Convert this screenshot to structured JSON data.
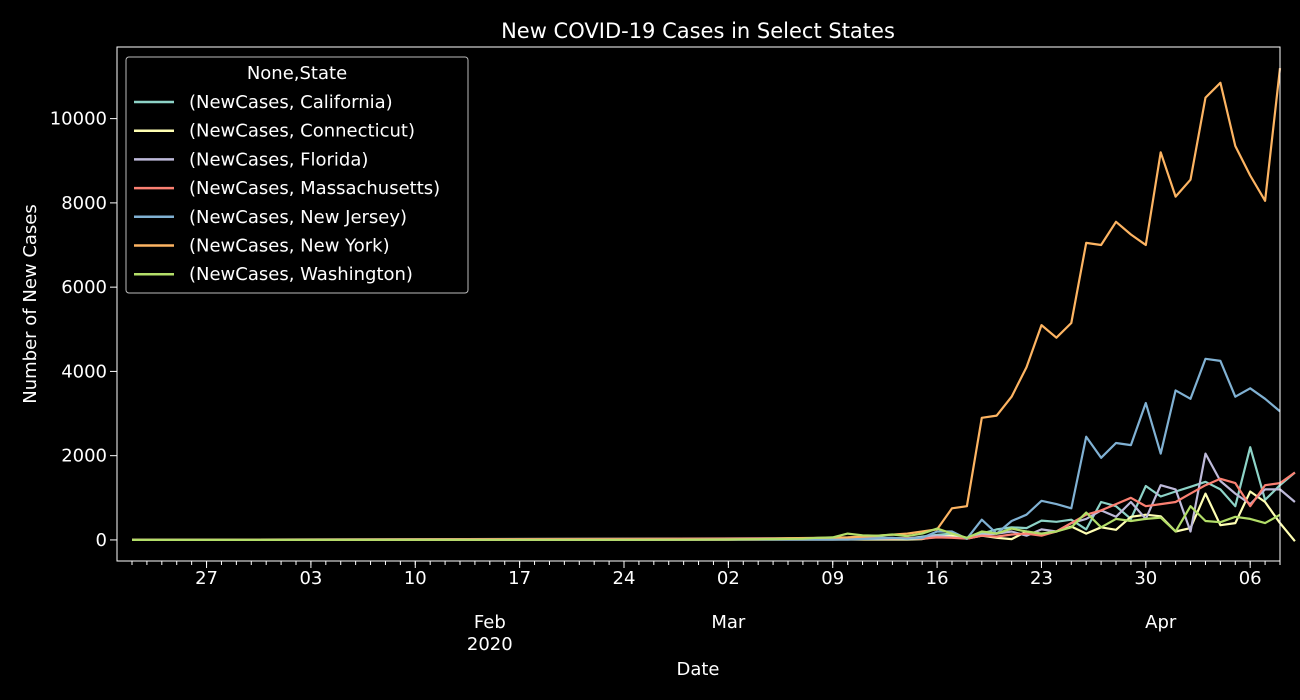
{
  "chart_data": {
    "type": "line",
    "title": "New COVID-19 Cases in Select States",
    "xlabel": "Date",
    "ylabel": "Number of New Cases",
    "x_start": "2020-01-22",
    "x_end": "2020-04-08",
    "ylim": [
      -500,
      11700
    ],
    "yticks": [
      0,
      2000,
      4000,
      6000,
      8000,
      10000
    ],
    "ytick_labels": [
      "0",
      "2000",
      "4000",
      "6000",
      "8000",
      "10000"
    ],
    "xticks": [
      {
        "date": "2020-01-27",
        "label": "27"
      },
      {
        "date": "2020-02-03",
        "label": "03"
      },
      {
        "date": "2020-02-10",
        "label": "10"
      },
      {
        "date": "2020-02-17",
        "label": "17"
      },
      {
        "date": "2020-02-24",
        "label": "24"
      },
      {
        "date": "2020-03-02",
        "label": "02"
      },
      {
        "date": "2020-03-09",
        "label": "09"
      },
      {
        "date": "2020-03-16",
        "label": "16"
      },
      {
        "date": "2020-03-23",
        "label": "23"
      },
      {
        "date": "2020-03-30",
        "label": "30"
      },
      {
        "date": "2020-04-06",
        "label": "06"
      }
    ],
    "month_labels": [
      {
        "date": "2020-02-15",
        "label": "Feb",
        "year": "2020"
      },
      {
        "date": "2020-03-02",
        "label": "Mar",
        "year": ""
      },
      {
        "date": "2020-03-31",
        "label": "Apr",
        "year": ""
      }
    ],
    "grid": false,
    "legend": {
      "title": "None,State",
      "position": "top-left"
    },
    "series": [
      {
        "name": "(NewCases, California)",
        "color": "#8dd3c7",
        "points": [
          [
            "2020-01-22",
            0
          ],
          [
            "2020-03-10",
            40
          ],
          [
            "2020-03-12",
            60
          ],
          [
            "2020-03-14",
            30
          ],
          [
            "2020-03-15",
            80
          ],
          [
            "2020-03-16",
            120
          ],
          [
            "2020-03-17",
            150
          ],
          [
            "2020-03-18",
            40
          ],
          [
            "2020-03-19",
            150
          ],
          [
            "2020-03-20",
            250
          ],
          [
            "2020-03-21",
            300
          ],
          [
            "2020-03-22",
            280
          ],
          [
            "2020-03-23",
            460
          ],
          [
            "2020-03-24",
            430
          ],
          [
            "2020-03-25",
            480
          ],
          [
            "2020-03-26",
            250
          ],
          [
            "2020-03-27",
            900
          ],
          [
            "2020-03-28",
            800
          ],
          [
            "2020-03-29",
            500
          ],
          [
            "2020-03-30",
            1280
          ],
          [
            "2020-03-31",
            1030
          ],
          [
            "2020-04-01",
            1150
          ],
          [
            "2020-04-02",
            1260
          ],
          [
            "2020-04-03",
            1380
          ],
          [
            "2020-04-04",
            1200
          ],
          [
            "2020-04-05",
            800
          ],
          [
            "2020-04-06",
            2200
          ],
          [
            "2020-04-07",
            950
          ],
          [
            "2020-04-08",
            1300
          ],
          [
            "2020-04-09",
            1600
          ]
        ]
      },
      {
        "name": "(NewCases, Connecticut)",
        "color": "#ffffb3",
        "points": [
          [
            "2020-01-22",
            0
          ],
          [
            "2020-03-14",
            10
          ],
          [
            "2020-03-15",
            20
          ],
          [
            "2020-03-16",
            80
          ],
          [
            "2020-03-17",
            100
          ],
          [
            "2020-03-18",
            30
          ],
          [
            "2020-03-19",
            100
          ],
          [
            "2020-03-20",
            50
          ],
          [
            "2020-03-21",
            20
          ],
          [
            "2020-03-22",
            200
          ],
          [
            "2020-03-23",
            120
          ],
          [
            "2020-03-24",
            200
          ],
          [
            "2020-03-25",
            320
          ],
          [
            "2020-03-26",
            150
          ],
          [
            "2020-03-27",
            300
          ],
          [
            "2020-03-28",
            240
          ],
          [
            "2020-03-29",
            550
          ],
          [
            "2020-03-30",
            600
          ],
          [
            "2020-03-31",
            560
          ],
          [
            "2020-04-01",
            200
          ],
          [
            "2020-04-02",
            280
          ],
          [
            "2020-04-03",
            1100
          ],
          [
            "2020-04-04",
            350
          ],
          [
            "2020-04-05",
            400
          ],
          [
            "2020-04-06",
            1150
          ],
          [
            "2020-04-07",
            900
          ],
          [
            "2020-04-08",
            400
          ],
          [
            "2020-04-09",
            -30
          ]
        ]
      },
      {
        "name": "(NewCases, Florida)",
        "color": "#bebada",
        "points": [
          [
            "2020-01-22",
            0
          ],
          [
            "2020-03-09",
            10
          ],
          [
            "2020-03-12",
            30
          ],
          [
            "2020-03-14",
            40
          ],
          [
            "2020-03-15",
            60
          ],
          [
            "2020-03-16",
            100
          ],
          [
            "2020-03-17",
            60
          ],
          [
            "2020-03-18",
            40
          ],
          [
            "2020-03-19",
            120
          ],
          [
            "2020-03-20",
            150
          ],
          [
            "2020-03-21",
            200
          ],
          [
            "2020-03-22",
            100
          ],
          [
            "2020-03-23",
            250
          ],
          [
            "2020-03-24",
            200
          ],
          [
            "2020-03-25",
            400
          ],
          [
            "2020-03-26",
            500
          ],
          [
            "2020-03-27",
            700
          ],
          [
            "2020-03-28",
            550
          ],
          [
            "2020-03-29",
            900
          ],
          [
            "2020-03-30",
            500
          ],
          [
            "2020-03-31",
            1300
          ],
          [
            "2020-04-01",
            1200
          ],
          [
            "2020-04-02",
            200
          ],
          [
            "2020-04-03",
            2050
          ],
          [
            "2020-04-04",
            1400
          ],
          [
            "2020-04-05",
            1100
          ],
          [
            "2020-04-06",
            850
          ],
          [
            "2020-04-07",
            1200
          ],
          [
            "2020-04-08",
            1200
          ],
          [
            "2020-04-09",
            900
          ]
        ]
      },
      {
        "name": "(NewCases, Massachusetts)",
        "color": "#fb8072",
        "points": [
          [
            "2020-01-22",
            0
          ],
          [
            "2020-03-14",
            40
          ],
          [
            "2020-03-15",
            30
          ],
          [
            "2020-03-16",
            60
          ],
          [
            "2020-03-17",
            50
          ],
          [
            "2020-03-18",
            30
          ],
          [
            "2020-03-19",
            100
          ],
          [
            "2020-03-20",
            80
          ],
          [
            "2020-03-21",
            130
          ],
          [
            "2020-03-22",
            150
          ],
          [
            "2020-03-23",
            100
          ],
          [
            "2020-03-24",
            200
          ],
          [
            "2020-03-25",
            400
          ],
          [
            "2020-03-26",
            600
          ],
          [
            "2020-03-27",
            700
          ],
          [
            "2020-03-28",
            850
          ],
          [
            "2020-03-29",
            1000
          ],
          [
            "2020-03-30",
            800
          ],
          [
            "2020-03-31",
            850
          ],
          [
            "2020-04-01",
            900
          ],
          [
            "2020-04-02",
            1100
          ],
          [
            "2020-04-03",
            1300
          ],
          [
            "2020-04-04",
            1450
          ],
          [
            "2020-04-05",
            1350
          ],
          [
            "2020-04-06",
            800
          ],
          [
            "2020-04-07",
            1300
          ],
          [
            "2020-04-08",
            1350
          ],
          [
            "2020-04-09",
            1600
          ]
        ]
      },
      {
        "name": "(NewCases, New Jersey)",
        "color": "#80b1d3",
        "points": [
          [
            "2020-01-22",
            0
          ],
          [
            "2020-03-05",
            10
          ],
          [
            "2020-03-10",
            10
          ],
          [
            "2020-03-13",
            50
          ],
          [
            "2020-03-14",
            30
          ],
          [
            "2020-03-15",
            50
          ],
          [
            "2020-03-16",
            200
          ],
          [
            "2020-03-17",
            200
          ],
          [
            "2020-03-18",
            30
          ],
          [
            "2020-03-19",
            480
          ],
          [
            "2020-03-20",
            150
          ],
          [
            "2020-03-21",
            450
          ],
          [
            "2020-03-22",
            600
          ],
          [
            "2020-03-23",
            930
          ],
          [
            "2020-03-24",
            850
          ],
          [
            "2020-03-25",
            750
          ],
          [
            "2020-03-26",
            2450
          ],
          [
            "2020-03-27",
            1950
          ],
          [
            "2020-03-28",
            2300
          ],
          [
            "2020-03-29",
            2250
          ],
          [
            "2020-03-30",
            3250
          ],
          [
            "2020-03-31",
            2050
          ],
          [
            "2020-04-01",
            3550
          ],
          [
            "2020-04-02",
            3350
          ],
          [
            "2020-04-03",
            4300
          ],
          [
            "2020-04-04",
            4250
          ],
          [
            "2020-04-05",
            3400
          ],
          [
            "2020-04-06",
            3600
          ],
          [
            "2020-04-07",
            3350
          ],
          [
            "2020-04-08",
            3050
          ]
        ]
      },
      {
        "name": "(NewCases, New York)",
        "color": "#fdb462",
        "points": [
          [
            "2020-01-22",
            0
          ],
          [
            "2020-03-02",
            10
          ],
          [
            "2020-03-04",
            20
          ],
          [
            "2020-03-06",
            40
          ],
          [
            "2020-03-08",
            50
          ],
          [
            "2020-03-10",
            60
          ],
          [
            "2020-03-12",
            100
          ],
          [
            "2020-03-14",
            150
          ],
          [
            "2020-03-15",
            200
          ],
          [
            "2020-03-16",
            250
          ],
          [
            "2020-03-17",
            750
          ],
          [
            "2020-03-18",
            800
          ],
          [
            "2020-03-19",
            2900
          ],
          [
            "2020-03-20",
            2950
          ],
          [
            "2020-03-21",
            3400
          ],
          [
            "2020-03-22",
            4100
          ],
          [
            "2020-03-23",
            5100
          ],
          [
            "2020-03-24",
            4800
          ],
          [
            "2020-03-25",
            5150
          ],
          [
            "2020-03-26",
            7050
          ],
          [
            "2020-03-27",
            7000
          ],
          [
            "2020-03-28",
            7550
          ],
          [
            "2020-03-29",
            7250
          ],
          [
            "2020-03-30",
            7000
          ],
          [
            "2020-03-31",
            9200
          ],
          [
            "2020-04-01",
            8150
          ],
          [
            "2020-04-02",
            8550
          ],
          [
            "2020-04-03",
            10500
          ],
          [
            "2020-04-04",
            10850
          ],
          [
            "2020-04-05",
            9350
          ],
          [
            "2020-04-06",
            8650
          ],
          [
            "2020-04-07",
            8050
          ],
          [
            "2020-04-08",
            11200
          ]
        ]
      },
      {
        "name": "(NewCases, Washington)",
        "color": "#b3de69",
        "points": [
          [
            "2020-01-22",
            0
          ],
          [
            "2020-02-28",
            5
          ],
          [
            "2020-03-02",
            10
          ],
          [
            "2020-03-05",
            20
          ],
          [
            "2020-03-07",
            30
          ],
          [
            "2020-03-08",
            50
          ],
          [
            "2020-03-09",
            60
          ],
          [
            "2020-03-10",
            150
          ],
          [
            "2020-03-11",
            110
          ],
          [
            "2020-03-12",
            100
          ],
          [
            "2020-03-13",
            130
          ],
          [
            "2020-03-14",
            90
          ],
          [
            "2020-03-15",
            150
          ],
          [
            "2020-03-16",
            270
          ],
          [
            "2020-03-17",
            150
          ],
          [
            "2020-03-18",
            50
          ],
          [
            "2020-03-19",
            200
          ],
          [
            "2020-03-20",
            150
          ],
          [
            "2020-03-21",
            270
          ],
          [
            "2020-03-22",
            200
          ],
          [
            "2020-03-23",
            150
          ],
          [
            "2020-03-24",
            200
          ],
          [
            "2020-03-25",
            300
          ],
          [
            "2020-03-26",
            650
          ],
          [
            "2020-03-27",
            300
          ],
          [
            "2020-03-28",
            500
          ],
          [
            "2020-03-29",
            450
          ],
          [
            "2020-03-30",
            500
          ],
          [
            "2020-03-31",
            530
          ],
          [
            "2020-04-01",
            200
          ],
          [
            "2020-04-02",
            800
          ],
          [
            "2020-04-03",
            450
          ],
          [
            "2020-04-04",
            420
          ],
          [
            "2020-04-05",
            550
          ],
          [
            "2020-04-06",
            500
          ],
          [
            "2020-04-07",
            400
          ],
          [
            "2020-04-08",
            600
          ]
        ]
      }
    ]
  }
}
